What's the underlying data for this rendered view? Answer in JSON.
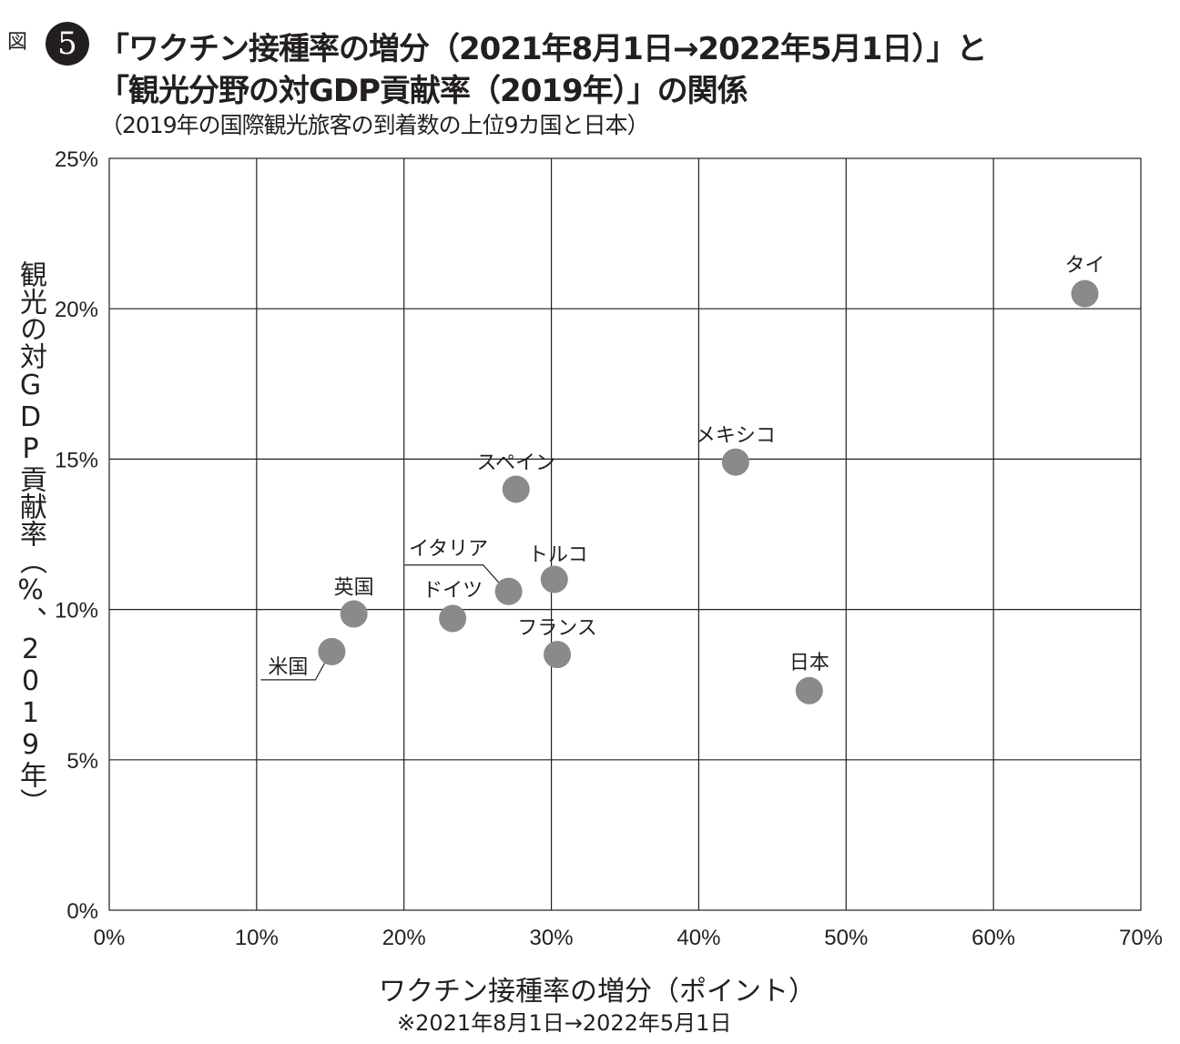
{
  "figure": {
    "label": "図",
    "number": "5",
    "title_line1": "「ワクチン接種率の増分（2021年8月1日→2022年5月1日）」と",
    "title_line2": "「観光分野の対GDP貢献率（2019年）」の関係",
    "subtitle": "（2019年の国際観光旅客の到着数の上位9カ国と日本）"
  },
  "chart_data": {
    "type": "scatter",
    "xlabel": "ワクチン接種率の増分（ポイント）",
    "xlabel_note": "※2021年8月1日→2022年5月1日",
    "ylabel": "観光の対GDP貢献率（%、2019年）",
    "xlim": [
      0,
      70
    ],
    "ylim": [
      0,
      25
    ],
    "x_ticks": [
      "0%",
      "10%",
      "20%",
      "30%",
      "40%",
      "50%",
      "60%",
      "70%"
    ],
    "y_ticks": [
      "0%",
      "5%",
      "10%",
      "15%",
      "20%",
      "25%"
    ],
    "grid": true,
    "point_color": "#8a8a8a",
    "points": [
      {
        "label": "タイ",
        "x": 66.2,
        "y": 20.5
      },
      {
        "label": "メキシコ",
        "x": 42.5,
        "y": 14.9
      },
      {
        "label": "スペイン",
        "x": 27.6,
        "y": 14.0
      },
      {
        "label": "トルコ",
        "x": 30.2,
        "y": 11.0
      },
      {
        "label": "イタリア",
        "x": 27.1,
        "y": 10.6
      },
      {
        "label": "ドイツ",
        "x": 23.3,
        "y": 9.7
      },
      {
        "label": "英国",
        "x": 16.6,
        "y": 9.85
      },
      {
        "label": "フランス",
        "x": 30.4,
        "y": 8.5
      },
      {
        "label": "米国",
        "x": 15.1,
        "y": 8.6
      },
      {
        "label": "日本",
        "x": 47.5,
        "y": 7.3
      }
    ]
  }
}
